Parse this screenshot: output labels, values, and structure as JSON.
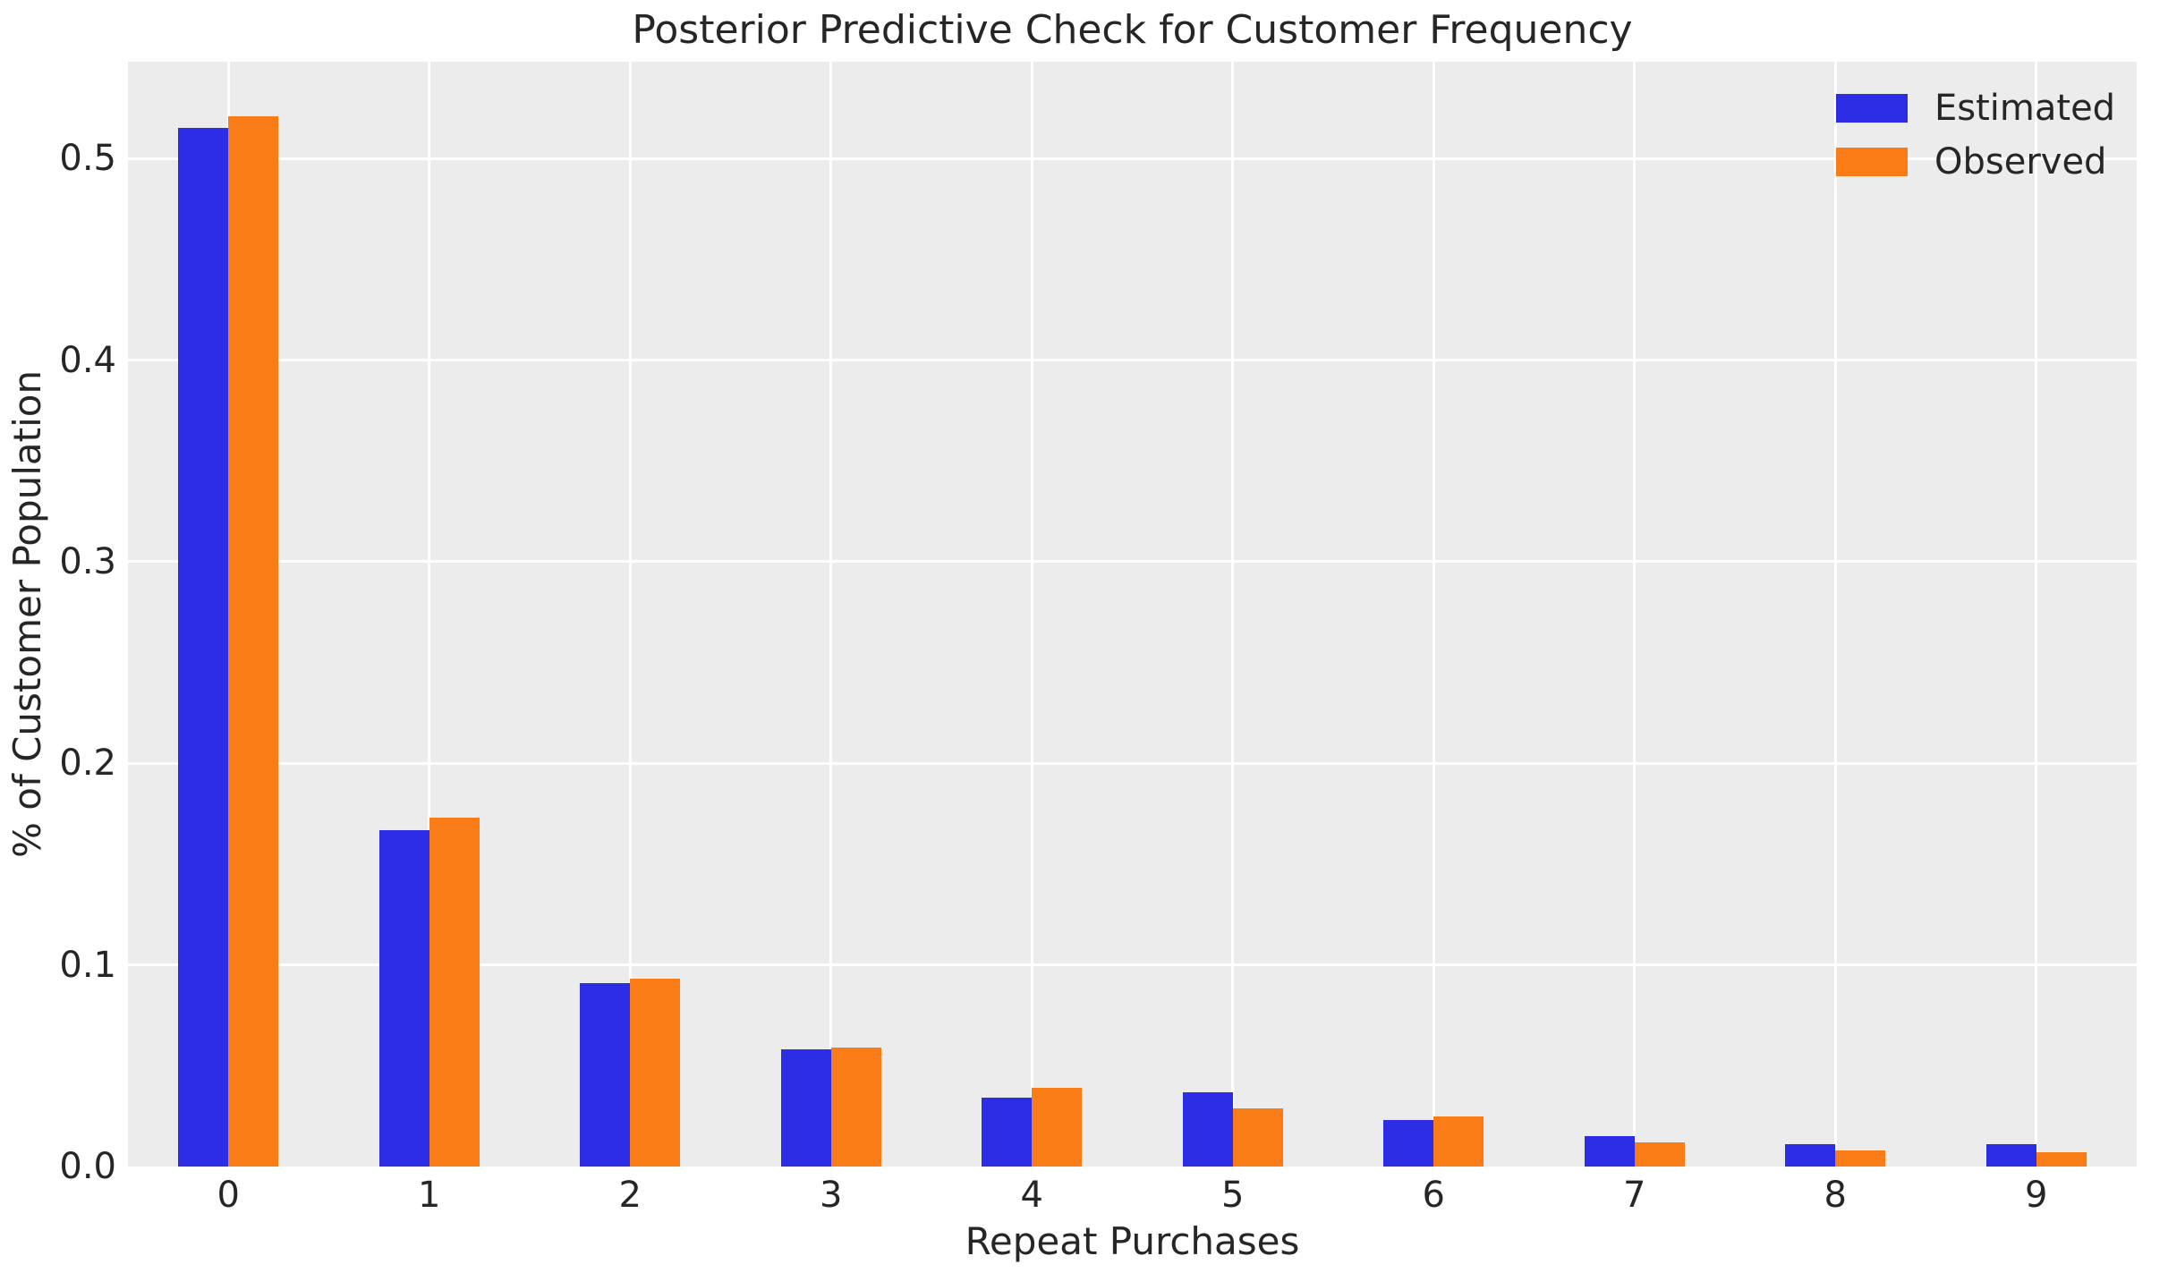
{
  "chart_data": {
    "type": "bar",
    "title": "Posterior Predictive Check for Customer Frequency",
    "xlabel": "Repeat Purchases",
    "ylabel": "% of Customer Population",
    "categories": [
      "0",
      "1",
      "2",
      "3",
      "4",
      "5",
      "6",
      "7",
      "8",
      "9"
    ],
    "series": [
      {
        "name": "Estimated",
        "color": "#2d2de6",
        "values": [
          0.515,
          0.167,
          0.091,
          0.058,
          0.034,
          0.037,
          0.023,
          0.015,
          0.011,
          0.011
        ]
      },
      {
        "name": "Observed",
        "color": "#f97c16",
        "values": [
          0.521,
          0.173,
          0.093,
          0.059,
          0.039,
          0.029,
          0.025,
          0.012,
          0.008,
          0.007
        ]
      }
    ],
    "ytick_labels": [
      "0.0",
      "0.1",
      "0.2",
      "0.3",
      "0.4",
      "0.5"
    ],
    "ytick_values": [
      0.0,
      0.1,
      0.2,
      0.3,
      0.4,
      0.5
    ],
    "ylim": [
      0,
      0.548
    ],
    "legend_position": "upper right",
    "grid": "white horizontal and vertical gridlines",
    "plot_background_color": "#ececec",
    "grid_color": "#ffffff",
    "text_color": "#262626",
    "figure_background_color": "#ffffff"
  }
}
